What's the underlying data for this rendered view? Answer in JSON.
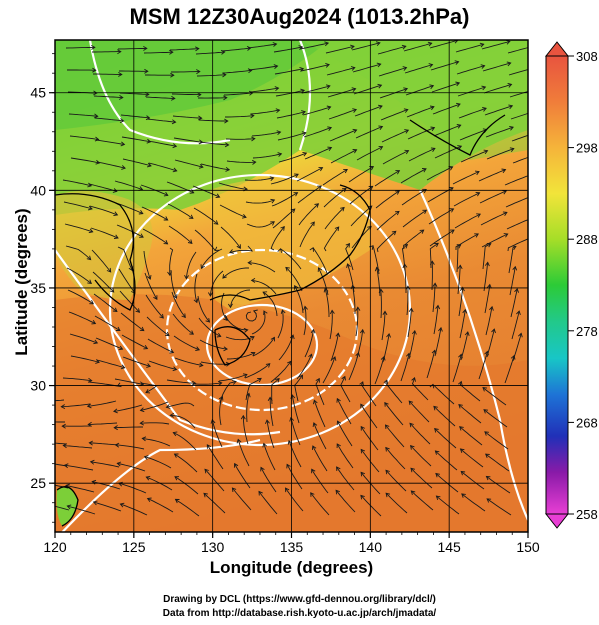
{
  "title": "MSM 12Z30Aug2024 (1013.2hPa)",
  "x_axis": {
    "label": "Longitude (degrees)",
    "ticks": [
      "120",
      "125",
      "130",
      "135",
      "140",
      "145",
      "150"
    ]
  },
  "y_axis": {
    "label": "Latitude  (degrees)",
    "ticks": [
      "25",
      "30",
      "35",
      "40",
      "45"
    ]
  },
  "colorbar": {
    "ticks": [
      "308",
      "298",
      "288",
      "278",
      "268",
      "258"
    ],
    "colors": [
      "#e8543f",
      "#f5a33a",
      "#f2e43a",
      "#a6de28",
      "#2ccb37",
      "#18c6c6",
      "#1e73d6",
      "#2030b8",
      "#8a1aa8",
      "#e83fd4"
    ]
  },
  "credits": {
    "line1": "Drawing by DCL (https://www.gfd-dennou.org/library/dcl/)",
    "line2": "Data from http://database.rish.kyoto-u.ac.jp/arch/jmadata/"
  },
  "map_colors": {
    "warm": "#e07a2e",
    "mid": "#f2b437",
    "cool": "#86d235",
    "contour": "#ffffff"
  }
}
